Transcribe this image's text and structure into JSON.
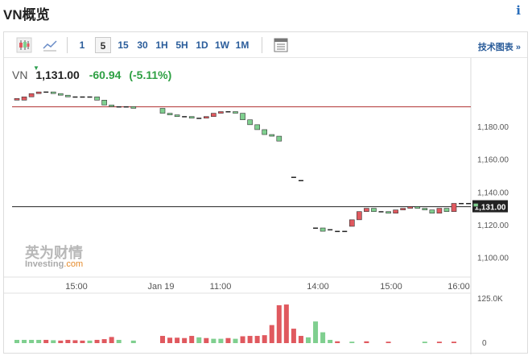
{
  "page": {
    "title": "VN概览",
    "info_icon": "info-icon"
  },
  "toolbar": {
    "chart_icons": [
      "candlestick-icon",
      "line-chart-icon"
    ],
    "intervals": [
      "1",
      "5",
      "15",
      "30",
      "1H",
      "5H",
      "1D",
      "1W",
      "1M"
    ],
    "active_interval": "5",
    "settings_icon": "table-icon",
    "tech_chart_label": "技术图表 »"
  },
  "quote": {
    "symbol": "VN",
    "price": "1,131.00",
    "change": "-60.94",
    "change_pct": "(-5.11%)",
    "change_color": "#2ea043"
  },
  "logo": {
    "cn": "英为财情",
    "en": "Investing",
    "en_suffix": ".com"
  },
  "colors": {
    "up": "#e0595f",
    "down": "#7fcf8f",
    "prev_close_line": "#b03030",
    "current_line": "#222222"
  },
  "chart_data": {
    "type": "candlestick",
    "x_tick_labels": [
      "15:00",
      "Jan 19",
      "11:00",
      "14:00",
      "15:00",
      "16:00"
    ],
    "y_tick_labels": [
      "1,180.00",
      "1,160.00",
      "1,140.00",
      "1,120.00",
      "1,100.00"
    ],
    "y_ticks": [
      1180,
      1160,
      1140,
      1120,
      1100
    ],
    "ylim": [
      1090,
      1205
    ],
    "prev_close": 1191.94,
    "current_price_label": "1,131.00",
    "current_price": 1131,
    "volume_tick_labels": [
      "125.0K",
      "0"
    ],
    "volume_ylim": [
      0,
      125000
    ],
    "candles": [
      {
        "c": 0,
        "o": 1196,
        "cl": 1197
      },
      {
        "c": 1,
        "o": 1196,
        "cl": 1198
      },
      {
        "c": 2,
        "o": 1198,
        "cl": 1200
      },
      {
        "c": 3,
        "o": 1200,
        "cl": 1201
      },
      {
        "c": 4,
        "o": 1201,
        "cl": 1201
      },
      {
        "c": 5,
        "o": 1201,
        "cl": 1200
      },
      {
        "c": 6,
        "o": 1200,
        "cl": 1199
      },
      {
        "c": 7,
        "o": 1199,
        "cl": 1198
      },
      {
        "c": 8,
        "o": 1198,
        "cl": 1198
      },
      {
        "c": 9,
        "o": 1198,
        "cl": 1198
      },
      {
        "c": 10,
        "o": 1198,
        "cl": 1198
      },
      {
        "c": 11,
        "o": 1198,
        "cl": 1196
      },
      {
        "c": 12,
        "o": 1196,
        "cl": 1193
      },
      {
        "c": 13,
        "o": 1193,
        "cl": 1192
      },
      {
        "c": 14,
        "o": 1192,
        "cl": 1192
      },
      {
        "c": 15,
        "o": 1192,
        "cl": 1192
      },
      {
        "c": 16,
        "o": 1192,
        "cl": 1191
      },
      {
        "c": 20,
        "o": 1191,
        "cl": 1188
      },
      {
        "c": 21,
        "o": 1188,
        "cl": 1187
      },
      {
        "c": 22,
        "o": 1187,
        "cl": 1186
      },
      {
        "c": 23,
        "o": 1186,
        "cl": 1186
      },
      {
        "c": 24,
        "o": 1186,
        "cl": 1185
      },
      {
        "c": 25,
        "o": 1185,
        "cl": 1185
      },
      {
        "c": 26,
        "o": 1185,
        "cl": 1186
      },
      {
        "c": 27,
        "o": 1186,
        "cl": 1188
      },
      {
        "c": 28,
        "o": 1188,
        "cl": 1189
      },
      {
        "c": 29,
        "o": 1189,
        "cl": 1189
      },
      {
        "c": 30,
        "o": 1189,
        "cl": 1188
      },
      {
        "c": 31,
        "o": 1188,
        "cl": 1184
      },
      {
        "c": 32,
        "o": 1184,
        "cl": 1181
      },
      {
        "c": 33,
        "o": 1181,
        "cl": 1178
      },
      {
        "c": 34,
        "o": 1178,
        "cl": 1175
      },
      {
        "c": 35,
        "o": 1175,
        "cl": 1174
      },
      {
        "c": 36,
        "o": 1174,
        "cl": 1171
      },
      {
        "c": 38,
        "o": 1149,
        "cl": 1149
      },
      {
        "c": 39,
        "o": 1147,
        "cl": 1147
      },
      {
        "c": 41,
        "o": 1118,
        "cl": 1118
      },
      {
        "c": 42,
        "o": 1118,
        "cl": 1116
      },
      {
        "c": 43,
        "o": 1117,
        "cl": 1117
      },
      {
        "c": 44,
        "o": 1116,
        "cl": 1116
      },
      {
        "c": 45,
        "o": 1116,
        "cl": 1116
      },
      {
        "c": 46,
        "o": 1119,
        "cl": 1123
      },
      {
        "c": 47,
        "o": 1123,
        "cl": 1128
      },
      {
        "c": 48,
        "o": 1128,
        "cl": 1130
      },
      {
        "c": 49,
        "o": 1130,
        "cl": 1128
      },
      {
        "c": 50,
        "o": 1128,
        "cl": 1128
      },
      {
        "c": 51,
        "o": 1128,
        "cl": 1127
      },
      {
        "c": 52,
        "o": 1127,
        "cl": 1129
      },
      {
        "c": 53,
        "o": 1129,
        "cl": 1130
      },
      {
        "c": 54,
        "o": 1130,
        "cl": 1131
      },
      {
        "c": 55,
        "o": 1131,
        "cl": 1130
      },
      {
        "c": 56,
        "o": 1130,
        "cl": 1129
      },
      {
        "c": 57,
        "o": 1129,
        "cl": 1127
      },
      {
        "c": 58,
        "o": 1127,
        "cl": 1130
      },
      {
        "c": 59,
        "o": 1130,
        "cl": 1128
      },
      {
        "c": 60,
        "o": 1128,
        "cl": 1133
      },
      {
        "c": 61,
        "o": 1133,
        "cl": 1133
      },
      {
        "c": 62,
        "o": 1133,
        "cl": 1133
      },
      {
        "c": 63,
        "o": 1133,
        "cl": 1131
      }
    ],
    "volumes": [
      {
        "c": 0,
        "v": 9000,
        "up": false
      },
      {
        "c": 1,
        "v": 9000,
        "up": false
      },
      {
        "c": 2,
        "v": 9000,
        "up": false
      },
      {
        "c": 3,
        "v": 9000,
        "up": false
      },
      {
        "c": 4,
        "v": 9000,
        "up": true
      },
      {
        "c": 5,
        "v": 8000,
        "up": false
      },
      {
        "c": 6,
        "v": 7000,
        "up": true
      },
      {
        "c": 7,
        "v": 9000,
        "up": true
      },
      {
        "c": 8,
        "v": 8000,
        "up": true
      },
      {
        "c": 9,
        "v": 7000,
        "up": true
      },
      {
        "c": 10,
        "v": 7000,
        "up": false
      },
      {
        "c": 11,
        "v": 9000,
        "up": true
      },
      {
        "c": 12,
        "v": 11000,
        "up": true
      },
      {
        "c": 13,
        "v": 17000,
        "up": true
      },
      {
        "c": 14,
        "v": 9000,
        "up": false
      },
      {
        "c": 16,
        "v": 7000,
        "up": false
      },
      {
        "c": 20,
        "v": 20000,
        "up": true
      },
      {
        "c": 21,
        "v": 15000,
        "up": true
      },
      {
        "c": 22,
        "v": 15000,
        "up": true
      },
      {
        "c": 23,
        "v": 14000,
        "up": true
      },
      {
        "c": 24,
        "v": 20000,
        "up": true
      },
      {
        "c": 25,
        "v": 16000,
        "up": false
      },
      {
        "c": 26,
        "v": 14000,
        "up": true
      },
      {
        "c": 27,
        "v": 12000,
        "up": false
      },
      {
        "c": 28,
        "v": 12000,
        "up": false
      },
      {
        "c": 29,
        "v": 14000,
        "up": true
      },
      {
        "c": 30,
        "v": 12000,
        "up": false
      },
      {
        "c": 31,
        "v": 19000,
        "up": true
      },
      {
        "c": 32,
        "v": 20000,
        "up": true
      },
      {
        "c": 33,
        "v": 20000,
        "up": true
      },
      {
        "c": 34,
        "v": 22000,
        "up": true
      },
      {
        "c": 35,
        "v": 50000,
        "up": true
      },
      {
        "c": 36,
        "v": 105000,
        "up": true
      },
      {
        "c": 37,
        "v": 107000,
        "up": true
      },
      {
        "c": 38,
        "v": 40000,
        "up": true
      },
      {
        "c": 39,
        "v": 20000,
        "up": true
      },
      {
        "c": 40,
        "v": 16000,
        "up": false
      },
      {
        "c": 41,
        "v": 60000,
        "up": false
      },
      {
        "c": 42,
        "v": 30000,
        "up": false
      },
      {
        "c": 43,
        "v": 9000,
        "up": false
      },
      {
        "c": 44,
        "v": 5000,
        "up": true
      },
      {
        "c": 46,
        "v": 4000,
        "up": false
      },
      {
        "c": 48,
        "v": 5000,
        "up": true
      },
      {
        "c": 51,
        "v": 4000,
        "up": true
      },
      {
        "c": 56,
        "v": 4000,
        "up": false
      },
      {
        "c": 58,
        "v": 4000,
        "up": true
      },
      {
        "c": 60,
        "v": 4000,
        "up": true
      }
    ]
  }
}
